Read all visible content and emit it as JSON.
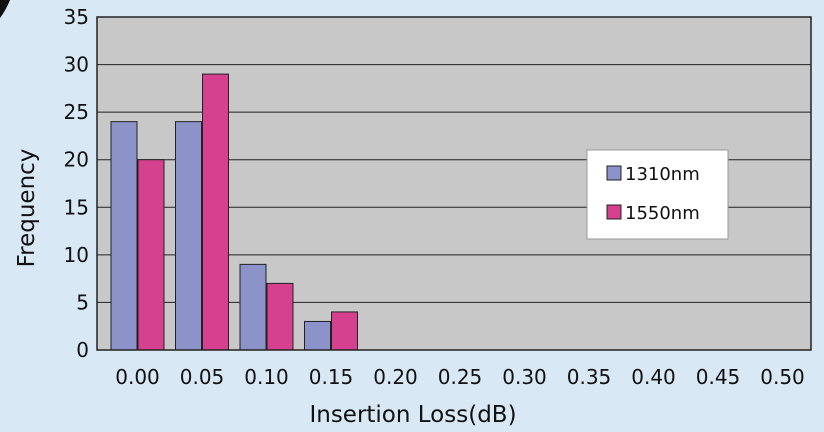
{
  "chart_data": {
    "type": "bar",
    "xlabel": "Insertion Loss(dB)",
    "ylabel": "Frequency",
    "categories": [
      "0.00",
      "0.05",
      "0.10",
      "0.15",
      "0.20",
      "0.25",
      "0.30",
      "0.35",
      "0.40",
      "0.45",
      "0.50"
    ],
    "ylim": [
      0,
      35
    ],
    "yticks": [
      0,
      5,
      10,
      15,
      20,
      25,
      30,
      35
    ],
    "grid": true,
    "legend_position": "right",
    "series": [
      {
        "name": "1310nm",
        "color": "#8c93c9",
        "values": [
          24,
          24,
          9,
          3,
          0,
          0,
          0,
          0,
          0,
          0,
          0
        ]
      },
      {
        "name": "1550nm",
        "color": "#d6418f",
        "values": [
          20,
          29,
          7,
          4,
          0,
          0,
          0,
          0,
          0,
          0,
          0
        ]
      }
    ],
    "plot_background": "#c8c8c8"
  }
}
